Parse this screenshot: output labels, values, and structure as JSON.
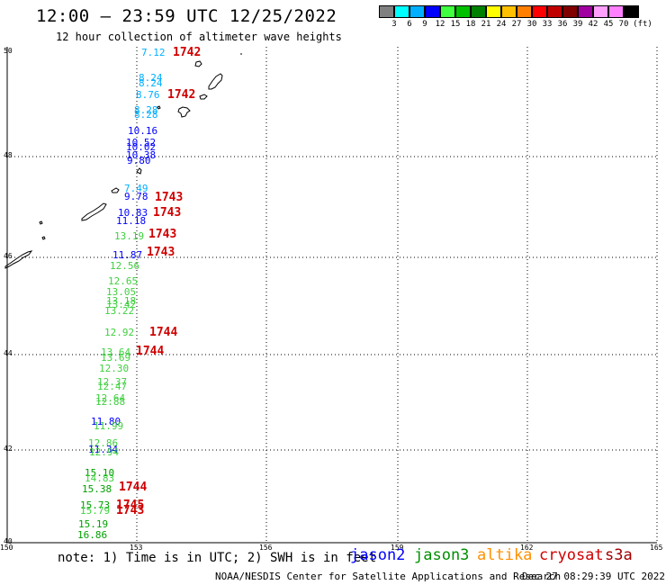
{
  "header": {
    "title": "12:00 — 23:59 UTC 12/25/2022",
    "subtitle": "12 hour collection of altimeter wave heights"
  },
  "legend_scale": {
    "colors": [
      "#808080",
      "#00ffff",
      "#00b0ff",
      "#0000ff",
      "#40ff40",
      "#00c000",
      "#008000",
      "#ffff00",
      "#ffc000",
      "#ff8000",
      "#ff0000",
      "#c00000",
      "#800000",
      "#a000a0",
      "#ffa0ff",
      "#ff80ff",
      "#000000"
    ],
    "labels": [
      "3",
      "6",
      "9",
      "12",
      "15",
      "18",
      "21",
      "24",
      "27",
      "30",
      "33",
      "36",
      "39",
      "42",
      "45",
      "70",
      "(ft)"
    ]
  },
  "axes": {
    "lat_labels": [
      "50",
      "48",
      "46",
      "44",
      "42",
      "40"
    ],
    "lon_labels": [
      "150",
      "153",
      "156",
      "159",
      "162",
      "165"
    ]
  },
  "wave_heights": [
    {
      "text": "7.12",
      "color": "#00b0ff"
    },
    {
      "text": "8.24",
      "color": "#00b0ff"
    },
    {
      "text": "8.24",
      "color": "#00b0ff"
    },
    {
      "text": "8.76",
      "color": "#00b0ff"
    },
    {
      "text": "8.28",
      "color": "#00b0ff"
    },
    {
      "text": "8.28",
      "color": "#00b0ff"
    },
    {
      "text": "10.16",
      "color": "#0000ff"
    },
    {
      "text": "10.52",
      "color": "#0000ff"
    },
    {
      "text": "10.02",
      "color": "#0000ff"
    },
    {
      "text": "10.38",
      "color": "#0000ff"
    },
    {
      "text": "9.80",
      "color": "#0000ff"
    },
    {
      "text": "7.49",
      "color": "#00b0ff"
    },
    {
      "text": "9.78",
      "color": "#0000ff"
    },
    {
      "text": "10.83",
      "color": "#0000ff"
    },
    {
      "text": "11.18",
      "color": "#0000ff"
    },
    {
      "text": "13.19",
      "color": "#40d040"
    },
    {
      "text": "11.87",
      "color": "#0000ff"
    },
    {
      "text": "12.56",
      "color": "#40d040"
    },
    {
      "text": "12.65",
      "color": "#40d040"
    },
    {
      "text": "13.05",
      "color": "#40d040"
    },
    {
      "text": "13.18",
      "color": "#40d040"
    },
    {
      "text": "13.42",
      "color": "#40d040"
    },
    {
      "text": "13.22",
      "color": "#40d040"
    },
    {
      "text": "12.92",
      "color": "#40d040"
    },
    {
      "text": "13.64",
      "color": "#40d040"
    },
    {
      "text": "13.69",
      "color": "#40d040"
    },
    {
      "text": "12.30",
      "color": "#40d040"
    },
    {
      "text": "12.37",
      "color": "#40d040"
    },
    {
      "text": "12.47",
      "color": "#40d040"
    },
    {
      "text": "12.64",
      "color": "#40d040"
    },
    {
      "text": "12.88",
      "color": "#40d040"
    },
    {
      "text": "11.80",
      "color": "#0000ff"
    },
    {
      "text": "11.99",
      "color": "#40d040"
    },
    {
      "text": "12.86",
      "color": "#40d040"
    },
    {
      "text": "11.34",
      "color": "#0000ff"
    },
    {
      "text": "12.94",
      "color": "#40d040"
    },
    {
      "text": "15.10",
      "color": "#00a000"
    },
    {
      "text": "14.83",
      "color": "#40d040"
    },
    {
      "text": "15.38",
      "color": "#00a000"
    },
    {
      "text": "15.73",
      "color": "#00a000"
    },
    {
      "text": "15.79",
      "color": "#40d040"
    },
    {
      "text": "15.19",
      "color": "#00a000"
    },
    {
      "text": "16.86",
      "color": "#00a000"
    }
  ],
  "revolutions": [
    "1742",
    "1742",
    "1743",
    "1743",
    "1743",
    "1743",
    "1744",
    "1744",
    "1744",
    "1745",
    "1743"
  ],
  "footer": {
    "note": "note: 1) Time is in UTC; 2) SWH is in feet",
    "satellites": [
      {
        "name": "jason2",
        "color": "#0000ff"
      },
      {
        "name": "jason3",
        "color": "#009000"
      },
      {
        "name": "altika",
        "color": "#ff9000"
      },
      {
        "name": "cryosat",
        "color": "#d00000"
      },
      {
        "name": "s3a",
        "color": "#a00000"
      }
    ],
    "credit": "NOAA/NESDIS Center for Satellite Applications and Research",
    "timestamp": "Dec 27 08:29:39 UTC 2022"
  }
}
